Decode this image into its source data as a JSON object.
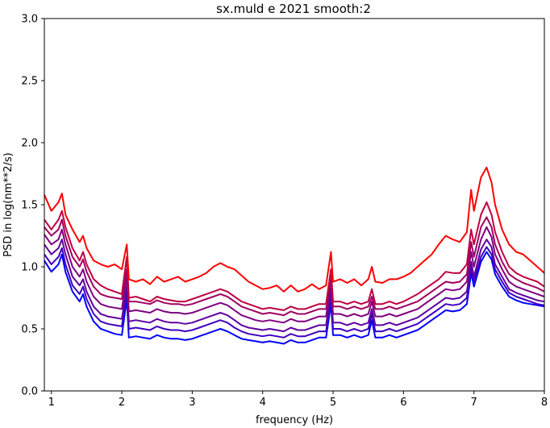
{
  "chart_data": {
    "type": "line",
    "title": "sx.muld e 2021 smooth:2",
    "xlabel": "frequency (Hz)",
    "ylabel": "PSD in log(nm**2/s)",
    "xlim": [
      0.9,
      8.0
    ],
    "ylim": [
      0.0,
      3.0
    ],
    "xticks": [
      1,
      2,
      3,
      4,
      5,
      6,
      7,
      8
    ],
    "xtick_labels": [
      "1",
      "2",
      "3",
      "4",
      "5",
      "6",
      "7",
      "8"
    ],
    "yticks": [
      0.0,
      0.5,
      1.0,
      1.5,
      2.0,
      2.5,
      3.0
    ],
    "ytick_labels": [
      "0.0",
      "0.5",
      "1.0",
      "1.5",
      "2.0",
      "2.5",
      "3.0"
    ],
    "grid": false,
    "legend": "none",
    "x": [
      0.9,
      1.0,
      1.1,
      1.15,
      1.2,
      1.3,
      1.4,
      1.45,
      1.5,
      1.6,
      1.7,
      1.8,
      1.9,
      2.0,
      2.07,
      2.1,
      2.2,
      2.3,
      2.4,
      2.5,
      2.6,
      2.7,
      2.8,
      2.9,
      3.0,
      3.1,
      3.2,
      3.3,
      3.4,
      3.5,
      3.6,
      3.7,
      3.8,
      3.9,
      4.0,
      4.1,
      4.2,
      4.3,
      4.4,
      4.5,
      4.6,
      4.7,
      4.8,
      4.9,
      4.97,
      5.0,
      5.1,
      5.2,
      5.3,
      5.4,
      5.5,
      5.55,
      5.6,
      5.7,
      5.8,
      5.9,
      6.0,
      6.1,
      6.2,
      6.3,
      6.4,
      6.5,
      6.6,
      6.7,
      6.8,
      6.9,
      6.96,
      7.0,
      7.1,
      7.18,
      7.25,
      7.3,
      7.4,
      7.5,
      7.6,
      7.7,
      7.8,
      7.9,
      8.0
    ],
    "series": [
      {
        "color": "#ff0000",
        "values": [
          1.58,
          1.45,
          1.52,
          1.59,
          1.42,
          1.3,
          1.2,
          1.25,
          1.15,
          1.05,
          1.02,
          1.0,
          1.02,
          0.98,
          1.18,
          0.9,
          0.88,
          0.9,
          0.86,
          0.92,
          0.88,
          0.9,
          0.92,
          0.88,
          0.9,
          0.92,
          0.95,
          1.0,
          1.03,
          1.0,
          0.98,
          0.93,
          0.88,
          0.85,
          0.82,
          0.83,
          0.85,
          0.8,
          0.85,
          0.8,
          0.82,
          0.86,
          0.82,
          0.85,
          1.12,
          0.88,
          0.9,
          0.87,
          0.9,
          0.85,
          0.9,
          1.0,
          0.88,
          0.87,
          0.9,
          0.9,
          0.92,
          0.95,
          1.0,
          1.05,
          1.1,
          1.18,
          1.25,
          1.22,
          1.2,
          1.28,
          1.62,
          1.45,
          1.72,
          1.8,
          1.68,
          1.5,
          1.3,
          1.18,
          1.12,
          1.1,
          1.05,
          1.0,
          0.95
        ]
      },
      {
        "color": "#bf0040",
        "values": [
          1.38,
          1.3,
          1.38,
          1.45,
          1.32,
          1.15,
          1.05,
          1.12,
          1.02,
          0.9,
          0.85,
          0.82,
          0.8,
          0.78,
          1.08,
          0.75,
          0.76,
          0.74,
          0.72,
          0.76,
          0.74,
          0.73,
          0.72,
          0.72,
          0.74,
          0.76,
          0.78,
          0.8,
          0.82,
          0.8,
          0.76,
          0.72,
          0.7,
          0.68,
          0.66,
          0.67,
          0.66,
          0.65,
          0.68,
          0.66,
          0.66,
          0.68,
          0.7,
          0.7,
          0.98,
          0.72,
          0.72,
          0.7,
          0.72,
          0.7,
          0.72,
          0.82,
          0.7,
          0.7,
          0.72,
          0.7,
          0.72,
          0.75,
          0.78,
          0.82,
          0.86,
          0.9,
          0.96,
          0.95,
          0.95,
          1.02,
          1.3,
          1.18,
          1.42,
          1.52,
          1.42,
          1.28,
          1.12,
          1.0,
          0.95,
          0.92,
          0.9,
          0.88,
          0.84
        ]
      },
      {
        "color": "#9f0060",
        "values": [
          1.32,
          1.25,
          1.3,
          1.38,
          1.25,
          1.08,
          1.0,
          1.06,
          0.96,
          0.84,
          0.78,
          0.76,
          0.75,
          0.74,
          0.98,
          0.72,
          0.72,
          0.71,
          0.7,
          0.73,
          0.71,
          0.7,
          0.7,
          0.69,
          0.7,
          0.72,
          0.74,
          0.76,
          0.78,
          0.76,
          0.72,
          0.68,
          0.66,
          0.64,
          0.62,
          0.63,
          0.62,
          0.61,
          0.64,
          0.62,
          0.62,
          0.64,
          0.66,
          0.66,
          0.9,
          0.68,
          0.68,
          0.66,
          0.68,
          0.66,
          0.68,
          0.76,
          0.66,
          0.66,
          0.68,
          0.66,
          0.68,
          0.7,
          0.72,
          0.76,
          0.8,
          0.84,
          0.88,
          0.87,
          0.88,
          0.94,
          1.2,
          1.08,
          1.32,
          1.4,
          1.32,
          1.18,
          1.04,
          0.94,
          0.9,
          0.87,
          0.85,
          0.83,
          0.8
        ]
      },
      {
        "color": "#7f0080",
        "values": [
          1.26,
          1.18,
          1.22,
          1.3,
          1.18,
          1.0,
          0.92,
          0.98,
          0.88,
          0.76,
          0.7,
          0.68,
          0.67,
          0.66,
          0.92,
          0.64,
          0.65,
          0.64,
          0.63,
          0.66,
          0.64,
          0.63,
          0.63,
          0.62,
          0.63,
          0.65,
          0.67,
          0.69,
          0.71,
          0.69,
          0.65,
          0.61,
          0.59,
          0.57,
          0.56,
          0.57,
          0.56,
          0.55,
          0.58,
          0.56,
          0.56,
          0.58,
          0.6,
          0.6,
          0.86,
          0.62,
          0.62,
          0.6,
          0.62,
          0.6,
          0.62,
          0.72,
          0.6,
          0.6,
          0.62,
          0.6,
          0.62,
          0.64,
          0.66,
          0.7,
          0.74,
          0.78,
          0.82,
          0.81,
          0.82,
          0.88,
          1.12,
          1.0,
          1.22,
          1.32,
          1.24,
          1.1,
          0.98,
          0.88,
          0.84,
          0.82,
          0.8,
          0.78,
          0.76
        ]
      },
      {
        "color": "#5f00a0",
        "values": [
          1.18,
          1.1,
          1.15,
          1.22,
          1.1,
          0.92,
          0.85,
          0.9,
          0.8,
          0.68,
          0.62,
          0.6,
          0.59,
          0.58,
          0.84,
          0.56,
          0.57,
          0.56,
          0.55,
          0.58,
          0.56,
          0.55,
          0.55,
          0.54,
          0.55,
          0.57,
          0.59,
          0.61,
          0.63,
          0.61,
          0.57,
          0.53,
          0.51,
          0.5,
          0.49,
          0.5,
          0.49,
          0.48,
          0.51,
          0.49,
          0.49,
          0.51,
          0.53,
          0.53,
          0.8,
          0.55,
          0.55,
          0.53,
          0.55,
          0.53,
          0.55,
          0.66,
          0.53,
          0.53,
          0.55,
          0.53,
          0.55,
          0.57,
          0.59,
          0.63,
          0.67,
          0.71,
          0.75,
          0.74,
          0.75,
          0.8,
          1.04,
          0.92,
          1.14,
          1.22,
          1.16,
          1.02,
          0.92,
          0.82,
          0.79,
          0.77,
          0.75,
          0.73,
          0.72
        ]
      },
      {
        "color": "#3f00c0",
        "values": [
          1.1,
          1.02,
          1.08,
          1.15,
          1.02,
          0.85,
          0.78,
          0.84,
          0.74,
          0.62,
          0.56,
          0.54,
          0.53,
          0.52,
          0.8,
          0.5,
          0.51,
          0.5,
          0.49,
          0.52,
          0.5,
          0.49,
          0.49,
          0.48,
          0.49,
          0.51,
          0.53,
          0.55,
          0.57,
          0.55,
          0.51,
          0.48,
          0.46,
          0.45,
          0.44,
          0.45,
          0.44,
          0.43,
          0.46,
          0.44,
          0.44,
          0.46,
          0.48,
          0.48,
          0.75,
          0.5,
          0.5,
          0.48,
          0.5,
          0.48,
          0.5,
          0.62,
          0.48,
          0.48,
          0.5,
          0.48,
          0.5,
          0.52,
          0.54,
          0.58,
          0.62,
          0.66,
          0.7,
          0.69,
          0.7,
          0.75,
          1.0,
          0.88,
          1.08,
          1.16,
          1.1,
          0.98,
          0.88,
          0.79,
          0.76,
          0.74,
          0.72,
          0.7,
          0.69
        ]
      },
      {
        "color": "#0000ff",
        "values": [
          1.05,
          0.96,
          1.02,
          1.1,
          0.96,
          0.8,
          0.72,
          0.78,
          0.68,
          0.56,
          0.5,
          0.48,
          0.46,
          0.45,
          0.74,
          0.43,
          0.44,
          0.43,
          0.42,
          0.45,
          0.43,
          0.42,
          0.42,
          0.41,
          0.42,
          0.44,
          0.46,
          0.48,
          0.5,
          0.48,
          0.45,
          0.42,
          0.41,
          0.4,
          0.39,
          0.4,
          0.39,
          0.38,
          0.41,
          0.39,
          0.39,
          0.41,
          0.43,
          0.43,
          0.7,
          0.45,
          0.45,
          0.43,
          0.45,
          0.43,
          0.45,
          0.57,
          0.43,
          0.43,
          0.45,
          0.43,
          0.45,
          0.47,
          0.49,
          0.53,
          0.57,
          0.61,
          0.65,
          0.64,
          0.65,
          0.7,
          0.95,
          0.84,
          1.04,
          1.12,
          1.06,
          0.94,
          0.84,
          0.76,
          0.73,
          0.71,
          0.7,
          0.69,
          0.68
        ]
      }
    ]
  }
}
